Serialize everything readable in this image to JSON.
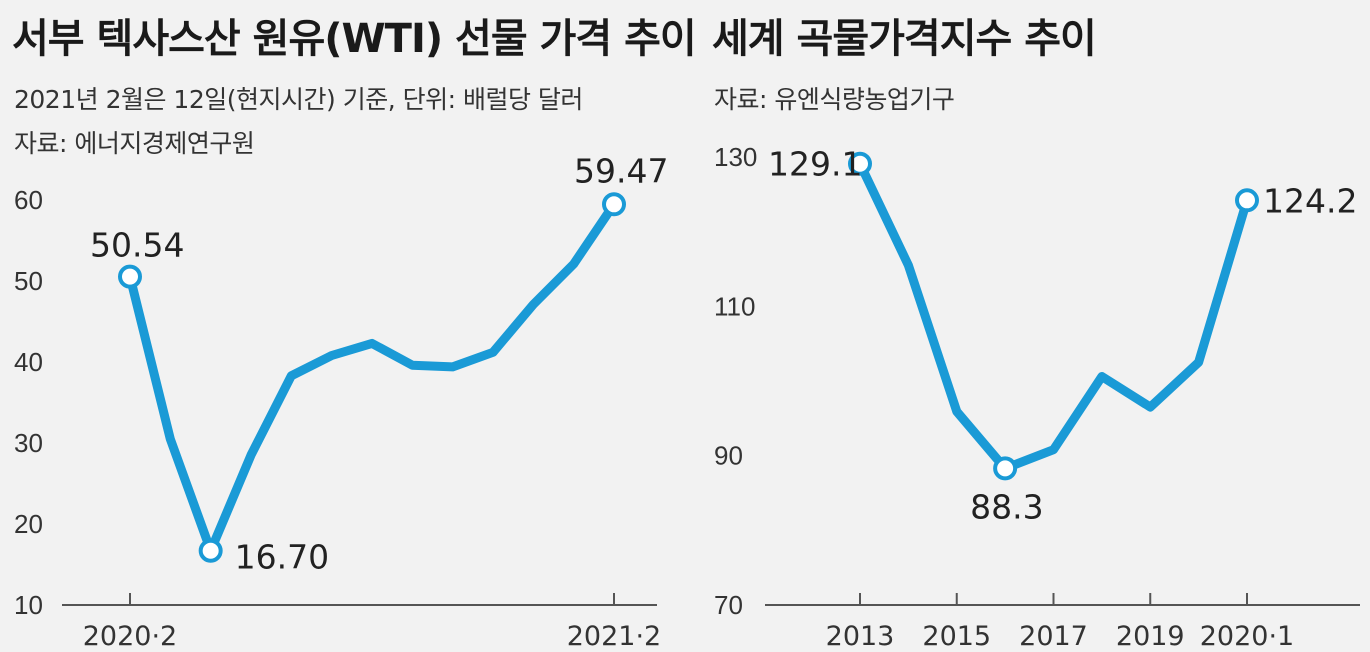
{
  "charts": [
    {
      "title": "서부 텍사스산 원유(WTI) 선물 가격 추이",
      "notes": [
        "2021년 2월은 12일(현지시간) 기준, 단위: 배럴당 달러",
        "자료: 에너지경제연구원"
      ]
    },
    {
      "title": "세계 곡물가격지수 추이",
      "notes": [
        "자료: 유엔식량농업기구"
      ]
    }
  ],
  "chart_data": [
    {
      "type": "line",
      "title": "서부 텍사스산 원유(WTI) 선물 가격 추이",
      "unit": "배럴당 달러",
      "ylim": [
        10,
        60
      ],
      "yticks": [
        10,
        20,
        30,
        40,
        50,
        60
      ],
      "x": [
        "2020·2",
        "2020·3",
        "2020·4",
        "2020·5",
        "2020·6",
        "2020·7",
        "2020·8",
        "2020·9",
        "2020·10",
        "2020·11",
        "2020·12",
        "2021·1",
        "2021·2"
      ],
      "xtick_labels": [
        "2020·2",
        "2021·2"
      ],
      "values": [
        50.54,
        30.5,
        16.7,
        28.5,
        38.3,
        40.8,
        42.3,
        39.6,
        39.4,
        41.2,
        47.1,
        52.1,
        59.47
      ],
      "labeled_points": [
        {
          "x": "2020·2",
          "label": "50.54"
        },
        {
          "x": "2020·4",
          "label": "16.70"
        },
        {
          "x": "2021·2",
          "label": "59.47"
        }
      ],
      "color": "#1a9ad6"
    },
    {
      "type": "line",
      "title": "세계 곡물가격지수 추이",
      "ylim": [
        70,
        130
      ],
      "yticks": [
        70,
        90,
        110,
        130
      ],
      "x": [
        "2013",
        "2014",
        "2015",
        "2016",
        "2017",
        "2018",
        "2019",
        "2020",
        "2020·1"
      ],
      "xtick_labels": [
        "2013",
        "2015",
        "2017",
        "2019",
        "2020·1"
      ],
      "values": [
        129.1,
        115.5,
        95.9,
        88.3,
        90.8,
        100.6,
        96.5,
        102.5,
        124.2
      ],
      "labeled_points": [
        {
          "x": "2013",
          "label": "129.1"
        },
        {
          "x": "2016",
          "label": "88.3"
        },
        {
          "x": "2020·1",
          "label": "124.2"
        }
      ],
      "color": "#1a9ad6"
    }
  ]
}
